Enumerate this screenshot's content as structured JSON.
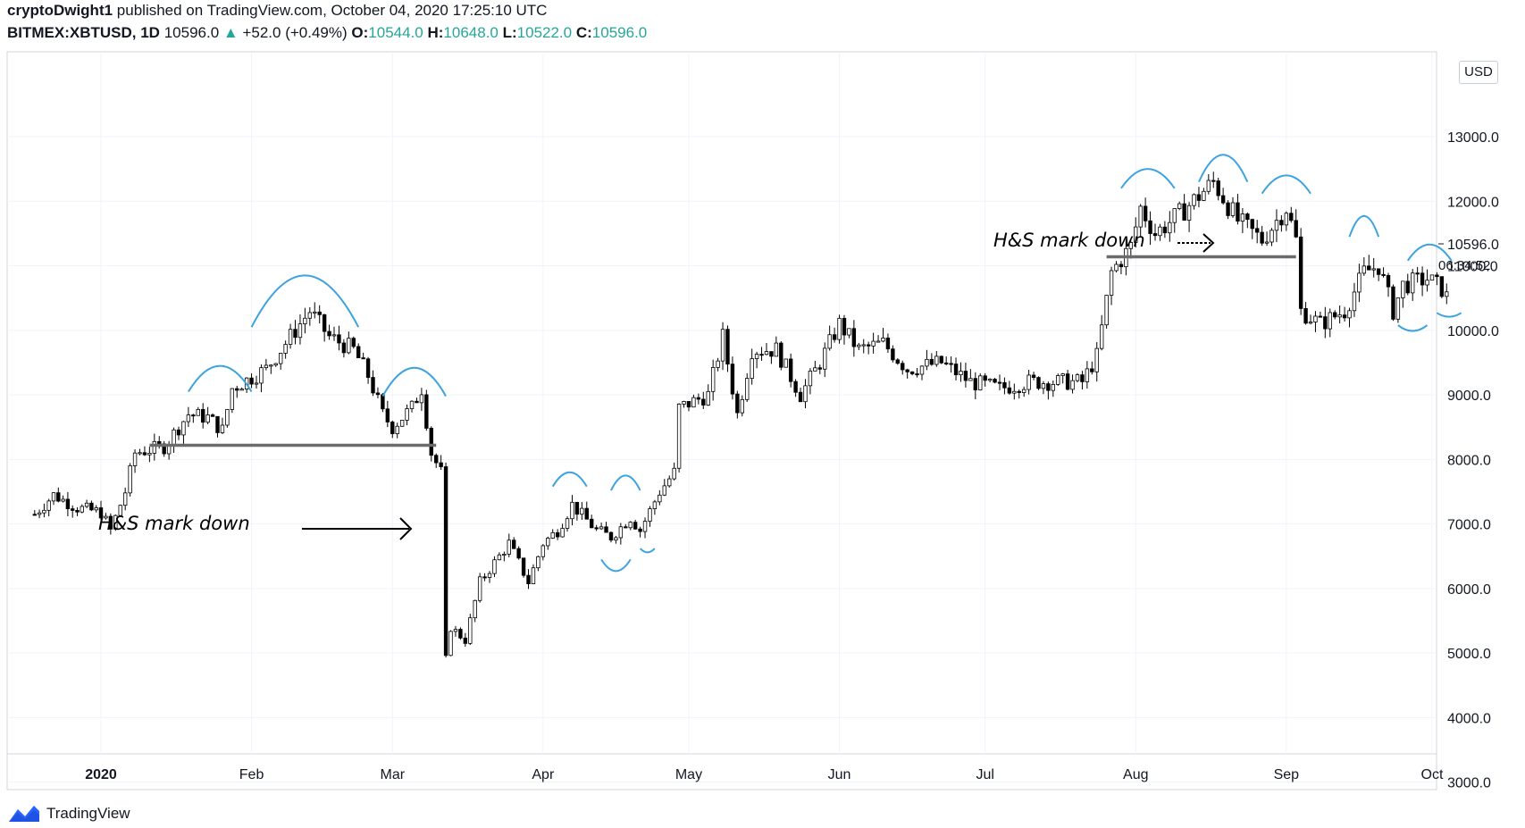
{
  "header": {
    "author": "cryptoDwight1",
    "published_text": "published on TradingView.com, October 04, 2020 17:25:10 UTC",
    "symbol": "BITMEX:XBTUSD, 1D",
    "last": "10596.0",
    "change": "+52.0 (+0.49%)",
    "open_label": "O:",
    "open": "10544.0",
    "high_label": "H:",
    "high": "10648.0",
    "low_label": "L:",
    "low": "10522.0",
    "close_label": "C:",
    "close": "10596.0"
  },
  "price_scale": {
    "currency": "USD",
    "last_price_label": "10596.0",
    "countdown": "06:34:52"
  },
  "annotations": [
    {
      "text": "H&S mark down"
    },
    {
      "text": "H&S mark down"
    }
  ],
  "footer": {
    "brand": "TradingView"
  },
  "colors": {
    "candle": "#000000",
    "arc": "#3ca3e0",
    "neckline": "#6b6b6b",
    "up_text": "#26a69a"
  },
  "chart_data": {
    "type": "candlestick",
    "symbol": "BITMEX:XBTUSD",
    "interval": "1D",
    "x_tick_labels": [
      "2020",
      "Feb",
      "Mar",
      "Apr",
      "May",
      "Jun",
      "Jul",
      "Aug",
      "Sep",
      "Oct"
    ],
    "y_tick_labels": [
      "3000.0",
      "4000.0",
      "5000.0",
      "6000.0",
      "7000.0",
      "8000.0",
      "9000.0",
      "10000.0",
      "11000.0",
      "12000.0",
      "13000.0"
    ],
    "ylim": [
      2700,
      13400
    ],
    "last_price": 10596.0,
    "necklines": [
      {
        "from_date": "2020-01-11",
        "to_date": "2020-03-10",
        "price": 8220
      },
      {
        "from_date": "2020-07-26",
        "to_date": "2020-09-03",
        "price": 11140
      }
    ],
    "price_path": [
      [
        "2019-12-18",
        7150
      ],
      [
        "2019-12-22",
        7450
      ],
      [
        "2019-12-27",
        7250
      ],
      [
        "2020-01-01",
        7180
      ],
      [
        "2020-01-03",
        6900
      ],
      [
        "2020-01-06",
        7500
      ],
      [
        "2020-01-08",
        8100
      ],
      [
        "2020-01-14",
        8200
      ],
      [
        "2020-01-19",
        8700
      ],
      [
        "2020-01-23",
        8650
      ],
      [
        "2020-01-26",
        8450
      ],
      [
        "2020-01-28",
        9100
      ],
      [
        "2020-02-04",
        9400
      ],
      [
        "2020-02-09",
        9900
      ],
      [
        "2020-02-13",
        10300
      ],
      [
        "2020-02-17",
        9900
      ],
      [
        "2020-02-22",
        9700
      ],
      [
        "2020-02-25",
        9300
      ],
      [
        "2020-02-28",
        8700
      ],
      [
        "2020-03-01",
        8500
      ],
      [
        "2020-03-05",
        8800
      ],
      [
        "2020-03-07",
        9100
      ],
      [
        "2020-03-09",
        8100
      ],
      [
        "2020-03-11",
        7800
      ],
      [
        "2020-03-12",
        4900
      ],
      [
        "2020-03-13",
        5400
      ],
      [
        "2020-03-16",
        5200
      ],
      [
        "2020-03-19",
        6100
      ],
      [
        "2020-03-22",
        6400
      ],
      [
        "2020-03-25",
        6700
      ],
      [
        "2020-03-29",
        6100
      ],
      [
        "2020-04-01",
        6700
      ],
      [
        "2020-04-04",
        6900
      ],
      [
        "2020-04-07",
        7300
      ],
      [
        "2020-04-12",
        6900
      ],
      [
        "2020-04-15",
        6800
      ],
      [
        "2020-04-19",
        7100
      ],
      [
        "2020-04-21",
        6900
      ],
      [
        "2020-04-25",
        7500
      ],
      [
        "2020-04-28",
        7800
      ],
      [
        "2020-04-29",
        8800
      ],
      [
        "2020-05-05",
        9000
      ],
      [
        "2020-05-08",
        9900
      ],
      [
        "2020-05-11",
        8700
      ],
      [
        "2020-05-14",
        9700
      ],
      [
        "2020-05-19",
        9700
      ],
      [
        "2020-05-24",
        9000
      ],
      [
        "2020-05-28",
        9500
      ],
      [
        "2020-06-01",
        10100
      ],
      [
        "2020-06-05",
        9700
      ],
      [
        "2020-06-10",
        9800
      ],
      [
        "2020-06-15",
        9400
      ],
      [
        "2020-06-22",
        9500
      ],
      [
        "2020-06-28",
        9200
      ],
      [
        "2020-07-04",
        9100
      ],
      [
        "2020-07-10",
        9200
      ],
      [
        "2020-07-16",
        9200
      ],
      [
        "2020-07-21",
        9200
      ],
      [
        "2020-07-24",
        9600
      ],
      [
        "2020-07-27",
        10900
      ],
      [
        "2020-07-31",
        11300
      ],
      [
        "2020-08-02",
        11900
      ],
      [
        "2020-08-05",
        11500
      ],
      [
        "2020-08-10",
        11800
      ],
      [
        "2020-08-17",
        12300
      ],
      [
        "2020-08-22",
        11700
      ],
      [
        "2020-08-27",
        11400
      ],
      [
        "2020-09-01",
        11900
      ],
      [
        "2020-09-03",
        11400
      ],
      [
        "2020-09-04",
        10300
      ],
      [
        "2020-09-08",
        10100
      ],
      [
        "2020-09-13",
        10300
      ],
      [
        "2020-09-17",
        10900
      ],
      [
        "2020-09-20",
        11000
      ],
      [
        "2020-09-23",
        10300
      ],
      [
        "2020-09-25",
        10700
      ],
      [
        "2020-09-30",
        10800
      ],
      [
        "2020-10-04",
        10596
      ]
    ]
  }
}
